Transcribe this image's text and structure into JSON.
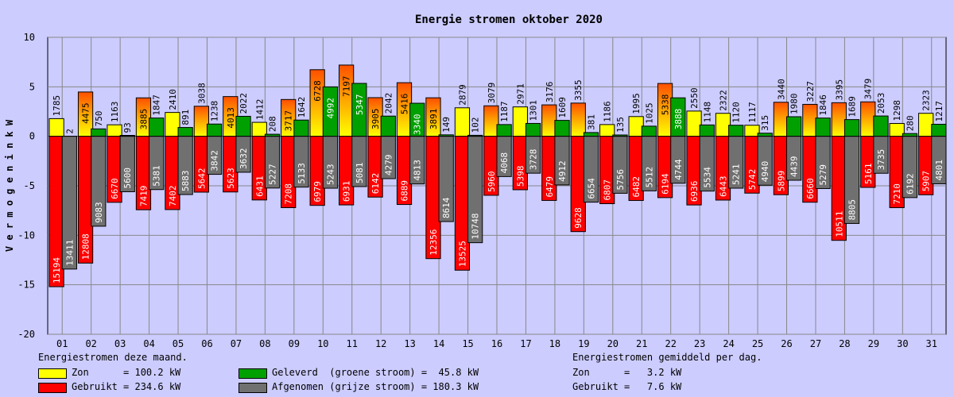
{
  "chart_data": {
    "type": "bar",
    "title": "Energie stromen oktober 2020",
    "ylabel": "V e r m o g e n  i n  k W",
    "xlabel": "",
    "ylim": [
      -20,
      10
    ],
    "yticks": [
      10,
      5,
      0,
      -5,
      -10,
      -15,
      -20
    ],
    "grid": true,
    "categories": [
      "01",
      "02",
      "03",
      "04",
      "05",
      "06",
      "07",
      "08",
      "09",
      "10",
      "11",
      "12",
      "13",
      "14",
      "15",
      "16",
      "17",
      "18",
      "19",
      "20",
      "21",
      "22",
      "23",
      "24",
      "25",
      "26",
      "27",
      "28",
      "29",
      "30",
      "31"
    ],
    "series": [
      {
        "name": "Zon",
        "color": "#ffff00",
        "values": [
          1785,
          4475,
          1163,
          3885,
          2410,
          3038,
          4013,
          1412,
          3717,
          6728,
          7197,
          3905,
          5416,
          3891,
          2879,
          3079,
          2971,
          3176,
          3355,
          1186,
          1995,
          5338,
          2550,
          2322,
          1117,
          3440,
          3227,
          3395,
          3479,
          1298,
          2323
        ]
      },
      {
        "name": "Gebruikt",
        "color": "#ff0000",
        "values": [
          -15194,
          -12808,
          -6670,
          -7419,
          -7402,
          -5642,
          -5623,
          -6431,
          -7208,
          -6979,
          -6931,
          -6142,
          -6889,
          -12356,
          -13525,
          -5960,
          -5398,
          -6479,
          -9628,
          -6807,
          -6482,
          -6194,
          -6936,
          -6443,
          -5742,
          -5899,
          -6660,
          -10511,
          -5161,
          -7210,
          -5907
        ]
      },
      {
        "name": "Geleverd (groene stroom)",
        "color": "#00a000",
        "values": [
          2,
          750,
          93,
          1847,
          891,
          1238,
          2022,
          208,
          1642,
          4992,
          5347,
          2042,
          3340,
          149,
          102,
          1187,
          1301,
          1609,
          381,
          135,
          1025,
          3888,
          1148,
          1120,
          315,
          1980,
          1846,
          1689,
          2053,
          280,
          1217
        ]
      },
      {
        "name": "Afgenomen (grijze stroom)",
        "color": "#707070",
        "values": [
          -13411,
          -9083,
          -5600,
          -5381,
          -5883,
          -3842,
          -3632,
          -5227,
          -5133,
          -5243,
          -5081,
          -4279,
          -4813,
          -8614,
          -10748,
          -4068,
          -3728,
          -4912,
          -6654,
          -5756,
          -5512,
          -4744,
          -5534,
          -5241,
          -4940,
          -4439,
          -5279,
          -8805,
          -3735,
          -6192,
          -4801
        ]
      }
    ]
  },
  "legend_left": {
    "title": "Energiestromen deze maand.",
    "items": [
      {
        "text": "Zon      = 100.2 kW",
        "color": "#ffff00"
      },
      {
        "text": "Gebruikt = 234.6 kW",
        "color": "#ff0000"
      },
      {
        "text": "Geleverd  (groene stroom) =  45.8 kW",
        "color": "#00a000"
      },
      {
        "text": "Afgenomen (grijze stroom) = 180.3 kW",
        "color": "#707070"
      }
    ]
  },
  "legend_right": {
    "title": "Energiestromen gemiddeld per dag.",
    "lines": [
      "Zon      =   3.2 kW",
      "Gebruikt =   7.6 kW"
    ]
  }
}
